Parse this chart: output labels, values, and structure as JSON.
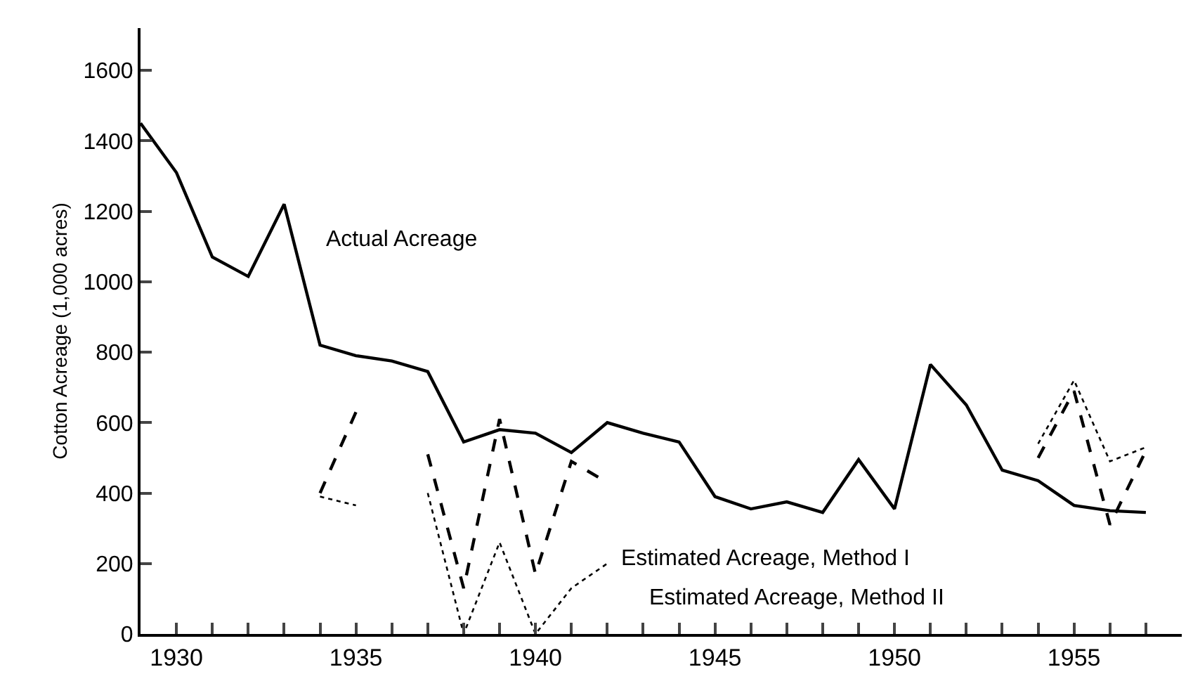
{
  "chart_data": {
    "type": "line",
    "ylabel": "Cotton Acreage (1,000 acres)",
    "x": [
      1929,
      1930,
      1931,
      1932,
      1933,
      1934,
      1935,
      1936,
      1937,
      1938,
      1939,
      1940,
      1941,
      1942,
      1943,
      1944,
      1945,
      1946,
      1947,
      1948,
      1949,
      1950,
      1951,
      1952,
      1953,
      1954,
      1955,
      1956,
      1957
    ],
    "series": [
      {
        "color": "#000000",
        "line_style": "solid",
        "values": [
          1450,
          1310,
          1070,
          1015,
          1220,
          820,
          790,
          775,
          745,
          545,
          580,
          570,
          515,
          600,
          570,
          545,
          390,
          355,
          375,
          345,
          495,
          355,
          765,
          650,
          465,
          435,
          365,
          350,
          345
        ]
      },
      {
        "color": "#000000",
        "line_style": "dashed",
        "values": [
          null,
          null,
          null,
          null,
          null,
          400,
          630,
          null,
          510,
          130,
          610,
          170,
          490,
          430,
          null,
          null,
          null,
          null,
          null,
          null,
          null,
          null,
          null,
          null,
          null,
          500,
          690,
          310,
          520
        ]
      },
      {
        "color": "#000000",
        "line_style": "dotted",
        "values": [
          null,
          null,
          null,
          null,
          null,
          390,
          365,
          null,
          400,
          0,
          260,
          0,
          130,
          200,
          null,
          null,
          null,
          null,
          null,
          null,
          null,
          null,
          null,
          null,
          null,
          540,
          720,
          490,
          530
        ]
      }
    ],
    "xlim": [
      1929,
      1958
    ],
    "xticks": [
      {
        "value": 1929,
        "label": null
      },
      1930,
      {
        "value": 1931,
        "label": null
      },
      {
        "value": 1932,
        "label": null
      },
      {
        "value": 1933,
        "label": null
      },
      {
        "value": 1934,
        "label": null
      },
      1935,
      {
        "value": 1936,
        "label": null
      },
      {
        "value": 1937,
        "label": null
      },
      {
        "value": 1938,
        "label": null
      },
      {
        "value": 1939,
        "label": null
      },
      1940,
      {
        "value": 1941,
        "label": null
      },
      {
        "value": 1942,
        "label": null
      },
      {
        "value": 1943,
        "label": null
      },
      {
        "value": 1944,
        "label": null
      },
      1945,
      {
        "value": 1946,
        "label": null
      },
      {
        "value": 1947,
        "label": null
      },
      {
        "value": 1948,
        "label": null
      },
      {
        "value": 1949,
        "label": null
      },
      1950,
      {
        "value": 1951,
        "label": null
      },
      {
        "value": 1952,
        "label": null
      },
      {
        "value": 1953,
        "label": null
      },
      {
        "value": 1954,
        "label": null
      },
      1955,
      {
        "value": 1956,
        "label": null
      },
      {
        "value": 1957,
        "label": null
      }
    ],
    "ylim": [
      0,
      1720
    ],
    "yticks": [
      0,
      200,
      400,
      600,
      800,
      1000,
      1200,
      1400,
      1600
    ],
    "grid": false,
    "marker": "none",
    "annotations": [
      "Actual Acreage",
      "Estimated Acreage, Method I",
      "Estimated Acreage, Method II"
    ]
  }
}
